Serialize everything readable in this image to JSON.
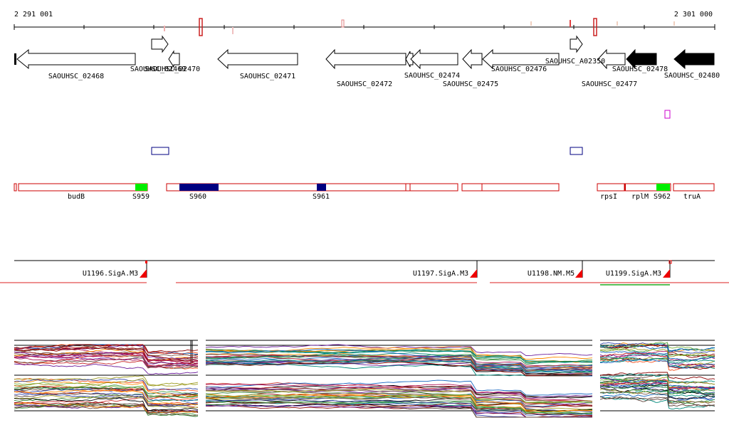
{
  "ruler": {
    "start_label": "2 291 001",
    "end_label": "2 301 000"
  },
  "genes": [
    {
      "id": "SAOUHSC_02468",
      "strand": "-",
      "filled": false
    },
    {
      "id": "SAOUHSC_02469",
      "strand": "+",
      "filled": false
    },
    {
      "id": "SAOUHSC_02470",
      "strand": "-",
      "filled": false
    },
    {
      "id": "SAOUHSC_02471",
      "strand": "-",
      "filled": false
    },
    {
      "id": "SAOUHSC_02472",
      "strand": "-",
      "filled": false
    },
    {
      "id": "SAOUHSC_02474",
      "strand": "-",
      "filled": false
    },
    {
      "id": "SAOUHSC_02475",
      "strand": "-",
      "filled": false
    },
    {
      "id": "SAOUHSC_02476",
      "strand": "-",
      "filled": false
    },
    {
      "id": "SAOUHSC_A02350",
      "strand": "+",
      "filled": false
    },
    {
      "id": "SAOUHSC_02477",
      "strand": "-",
      "filled": false
    },
    {
      "id": "SAOUHSC_02478",
      "strand": "-",
      "filled": true
    },
    {
      "id": "SAOUHSC_02480",
      "strand": "-",
      "filled": true
    }
  ],
  "operon_labels": [
    "budB",
    "S959",
    "S960",
    "S961",
    "rpsI",
    "rplM",
    "S962",
    "truA"
  ],
  "transcription_units": [
    {
      "label": "U1196.SigA.M3"
    },
    {
      "label": "U1197.SigA.M3"
    },
    {
      "label": "U1198.NM.M5"
    },
    {
      "label": "U1199.SigA.M3"
    }
  ],
  "colors": {
    "operon_outline": "#cc0000",
    "sRNA_fill": "#00ee00",
    "region_fill": "#000080",
    "gene_filled": "#000000",
    "promoter_marker": "#ee0000",
    "magenta_box": "#cc00cc"
  }
}
